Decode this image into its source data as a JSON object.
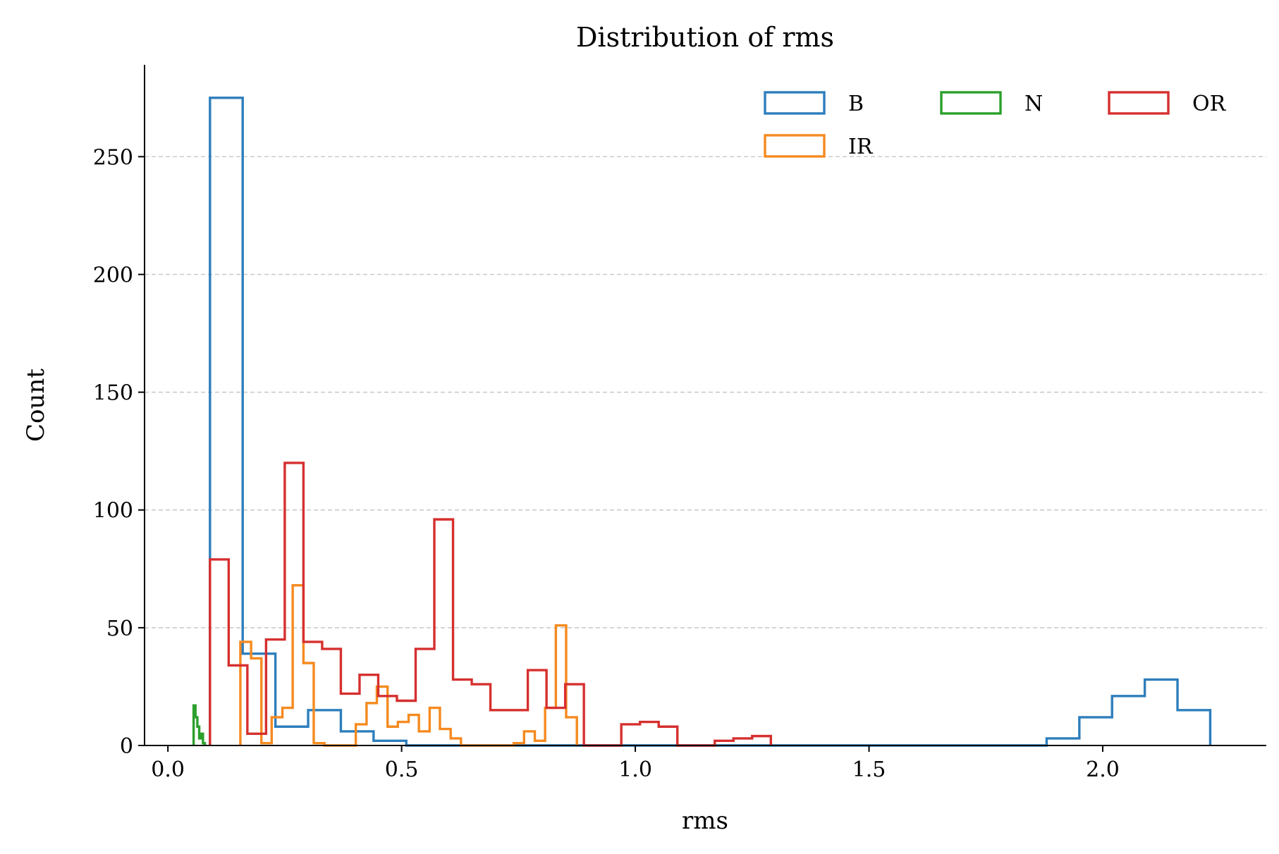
{
  "chart_data": {
    "type": "histogram",
    "title": "Distribution of rms",
    "xlabel": "rms",
    "ylabel": "Count",
    "xlim": [
      -0.05,
      2.35
    ],
    "ylim": [
      0,
      289
    ],
    "x_ticks": [
      0.0,
      0.5,
      1.0,
      1.5,
      2.0
    ],
    "x_tick_labels": [
      "0.0",
      "0.5",
      "1.0",
      "1.5",
      "2.0"
    ],
    "y_ticks": [
      0,
      50,
      100,
      150,
      200,
      250
    ],
    "y_tick_labels": [
      "0",
      "50",
      "100",
      "150",
      "200",
      "250"
    ],
    "grid": "y-dashed",
    "legend": {
      "placement": "top-right",
      "columns": 3
    },
    "series": [
      {
        "name": "B",
        "color": "#2e7ebc",
        "edges": [
          0.09,
          0.16,
          0.23,
          0.3,
          0.37,
          0.44,
          0.51,
          0.58,
          0.65,
          0.72,
          0.79,
          0.86,
          0.93,
          1.0,
          1.07,
          1.14,
          1.21,
          1.28,
          1.35,
          1.42,
          1.49,
          1.56,
          1.63,
          1.7,
          1.77,
          1.84,
          1.88,
          1.95,
          2.02,
          2.09,
          2.16,
          2.23
        ],
        "counts": [
          275,
          39,
          8,
          15,
          6,
          2,
          0,
          0,
          0,
          0,
          0,
          0,
          0,
          0,
          0,
          0,
          0,
          0,
          0,
          0,
          0,
          0,
          0,
          0,
          0,
          0,
          3,
          12,
          21,
          28,
          15
        ]
      },
      {
        "name": "IR",
        "color": "#f58a1f",
        "edges": [
          0.155,
          0.178,
          0.2,
          0.222,
          0.245,
          0.267,
          0.29,
          0.312,
          0.335,
          0.357,
          0.38,
          0.402,
          0.425,
          0.447,
          0.47,
          0.492,
          0.515,
          0.537,
          0.56,
          0.582,
          0.605,
          0.627,
          0.65,
          0.672,
          0.695,
          0.717,
          0.74,
          0.762,
          0.785,
          0.807,
          0.83,
          0.852,
          0.875
        ],
        "counts": [
          44,
          37,
          1,
          12,
          16,
          68,
          35,
          1,
          0,
          0,
          0,
          9,
          18,
          25,
          8,
          10,
          13,
          6,
          16,
          7,
          3,
          0,
          0,
          0,
          0,
          0,
          1,
          6,
          2,
          16,
          51,
          12
        ]
      },
      {
        "name": "N",
        "color": "#2ca02c",
        "edges": [
          0.055,
          0.059,
          0.063,
          0.067,
          0.071,
          0.075,
          0.079
        ],
        "counts": [
          17,
          12,
          8,
          3,
          5,
          1
        ]
      },
      {
        "name": "OR",
        "color": "#d62f2f",
        "edges": [
          0.09,
          0.13,
          0.17,
          0.21,
          0.25,
          0.29,
          0.33,
          0.37,
          0.41,
          0.45,
          0.49,
          0.53,
          0.57,
          0.61,
          0.65,
          0.69,
          0.73,
          0.77,
          0.81,
          0.85,
          0.89,
          0.93,
          0.97,
          1.01,
          1.05,
          1.09,
          1.13,
          1.17,
          1.21,
          1.25,
          1.29
        ],
        "counts": [
          79,
          34,
          5,
          45,
          120,
          44,
          41,
          22,
          30,
          21,
          19,
          41,
          96,
          28,
          26,
          15,
          15,
          32,
          16,
          26,
          0,
          0,
          9,
          10,
          8,
          0,
          0,
          2,
          3,
          4
        ]
      }
    ]
  }
}
